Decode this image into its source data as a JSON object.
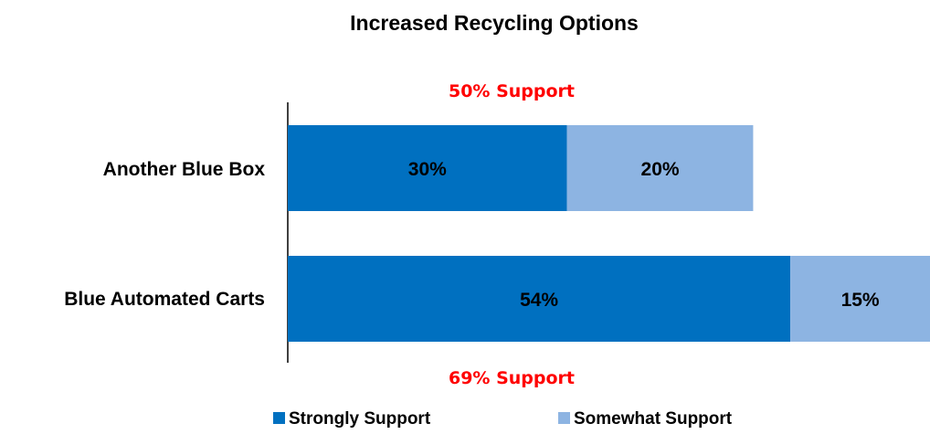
{
  "chart_data": {
    "type": "bar",
    "orientation": "horizontal",
    "stacked": true,
    "title": "Increased Recycling Options",
    "categories": [
      "Another Blue Box",
      "Blue Automated Carts"
    ],
    "series": [
      {
        "name": "Strongly Support",
        "values": [
          30,
          54
        ],
        "labels": [
          "30%",
          "54%"
        ],
        "color": "#0070C0"
      },
      {
        "name": "Somewhat Support",
        "values": [
          20,
          15
        ],
        "labels": [
          "20%",
          "15%"
        ],
        "color": "#8DB4E2"
      }
    ],
    "annotations": [
      {
        "category": "Another Blue Box",
        "text": "50% Support"
      },
      {
        "category": "Blue Automated Carts",
        "text": "69% Support"
      }
    ],
    "annotation_color": "#FF0000",
    "xlim": [
      0,
      69
    ],
    "grid": false,
    "legend": "bottom-center"
  }
}
